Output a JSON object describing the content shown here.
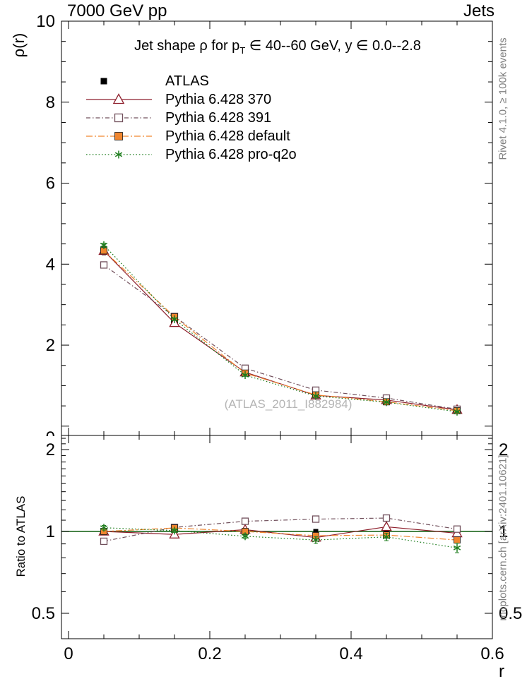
{
  "header": {
    "left": "7000 GeV pp",
    "right": "Jets"
  },
  "title": {
    "pre": "Jet shape ρ for p",
    "sub": "T",
    "post": " ∈ 40--60 GeV, y ∈ 0.0--2.8"
  },
  "watermark": "(ATLAS_2011_I882984)",
  "side_texts": {
    "top": "Rivet 4.1.0, ≥ 100k events",
    "bottom": "mcplots.cern.ch [arXiv:2401.10621]"
  },
  "axes": {
    "x_label": "r",
    "y_label": "ρ(r)",
    "ratio_label": "Ratio to ATLAS"
  },
  "colors": {
    "frame": "#000000",
    "reference_line": "#0b5c0b",
    "tick_text": "#000000",
    "side_text": "#808080",
    "watermark_text": "#b5b5b5"
  },
  "chart_data": {
    "type": "line",
    "title": "Jet shape ρ for p_T ∈ 40--60 GeV, y ∈ 0.0--2.8",
    "xlabel": "r",
    "x": [
      0.05,
      0.15,
      0.25,
      0.35,
      0.45,
      0.55
    ],
    "xlim": [
      -0.01,
      0.6
    ],
    "x_major_ticks": {
      "values": [
        0,
        0.2,
        0.4,
        0.6
      ],
      "labels": [
        "0",
        "0.2",
        "0.4",
        "0.6"
      ]
    },
    "x_minor_ticks": [
      0.05,
      0.1,
      0.15,
      0.25,
      0.3,
      0.35,
      0.45,
      0.5,
      0.55
    ],
    "main_panel": {
      "ylabel": "ρ(r)",
      "yscale": "linear",
      "ylim": [
        0,
        10
      ],
      "y_major_ticks": {
        "values": [
          0,
          2,
          4,
          6,
          8,
          10
        ],
        "labels": [
          "0",
          "2",
          "4",
          "6",
          "8",
          "10"
        ]
      },
      "y_minor_ticks": [
        0.5,
        1,
        1.5,
        2.5,
        3,
        3.5,
        4.5,
        5,
        5.5,
        6.5,
        7,
        7.5,
        8.5,
        9,
        9.5
      ]
    },
    "ratio_panel": {
      "ylabel": "Ratio to ATLAS",
      "yscale": "log",
      "ylim": [
        0.403,
        2.26
      ],
      "reference_value": 1,
      "y_major_ticks": {
        "values": [
          0.5,
          1,
          2
        ],
        "labels": [
          "0.5",
          "1",
          "2"
        ]
      },
      "y_minor_ticks": [
        0.6,
        0.7,
        0.8,
        0.9,
        1.1,
        1.2,
        1.3,
        1.4,
        1.5,
        1.6,
        1.7,
        1.8,
        1.9,
        2.1,
        2.2
      ]
    },
    "legend_position": "top-left",
    "series": [
      {
        "name": "ATLAS",
        "color": "#000000",
        "marker": "filled-square",
        "line": "none",
        "values": [
          4.33,
          2.62,
          1.31,
          0.8,
          0.62,
          0.41
        ],
        "errors": [
          0.1,
          0.06,
          0.04,
          0.03,
          0.025,
          0.02
        ],
        "ratio": [
          1,
          1,
          1,
          1,
          1,
          1
        ],
        "ratio_errors": [
          0.02,
          0.015,
          0.015,
          0.015,
          0.015,
          0.015
        ]
      },
      {
        "name": "Pythia 6.428 370",
        "color": "#8e1f2c",
        "marker": "open-triangle",
        "line": "solid",
        "values": [
          4.33,
          2.55,
          1.33,
          0.76,
          0.645,
          0.404
        ],
        "errors": [
          0.05,
          0.03,
          0.02,
          0.015,
          0.012,
          0.01
        ],
        "ratio": [
          1.0,
          0.975,
          1.015,
          0.95,
          1.04,
          0.985
        ],
        "ratio_errors": [
          0.012,
          0.01,
          0.012,
          0.015,
          0.015,
          0.015
        ]
      },
      {
        "name": "Pythia 6.428 391",
        "color": "#71505c",
        "marker": "open-square",
        "line": "dashdot",
        "values": [
          3.98,
          2.71,
          1.43,
          0.888,
          0.694,
          0.418
        ],
        "errors": [
          0.05,
          0.03,
          0.02,
          0.015,
          0.012,
          0.01
        ],
        "ratio": [
          0.92,
          1.035,
          1.09,
          1.11,
          1.12,
          1.02
        ],
        "ratio_errors": [
          0.02,
          0.015,
          0.02,
          0.025,
          0.03,
          0.025
        ]
      },
      {
        "name": "Pythia 6.428 default",
        "color": "#f0862f",
        "marker": "filled-square",
        "line": "longdashdot",
        "values": [
          4.33,
          2.7,
          1.31,
          0.772,
          0.601,
          0.381
        ],
        "errors": [
          0.05,
          0.03,
          0.02,
          0.015,
          0.012,
          0.01
        ],
        "ratio": [
          1.0,
          1.03,
          1.0,
          0.965,
          0.97,
          0.93
        ],
        "ratio_errors": [
          0.015,
          0.012,
          0.012,
          0.015,
          0.015,
          0.02
        ]
      },
      {
        "name": "Pythia 6.428 pro-q2o",
        "color": "#1e7d1e",
        "marker": "star",
        "line": "dotted",
        "values": [
          4.47,
          2.64,
          1.26,
          0.744,
          0.592,
          0.357
        ],
        "errors": [
          0.05,
          0.03,
          0.02,
          0.015,
          0.012,
          0.01
        ],
        "ratio": [
          1.032,
          1.007,
          0.96,
          0.93,
          0.955,
          0.87
        ],
        "ratio_errors": [
          0.02,
          0.015,
          0.02,
          0.025,
          0.03,
          0.035
        ]
      }
    ]
  }
}
